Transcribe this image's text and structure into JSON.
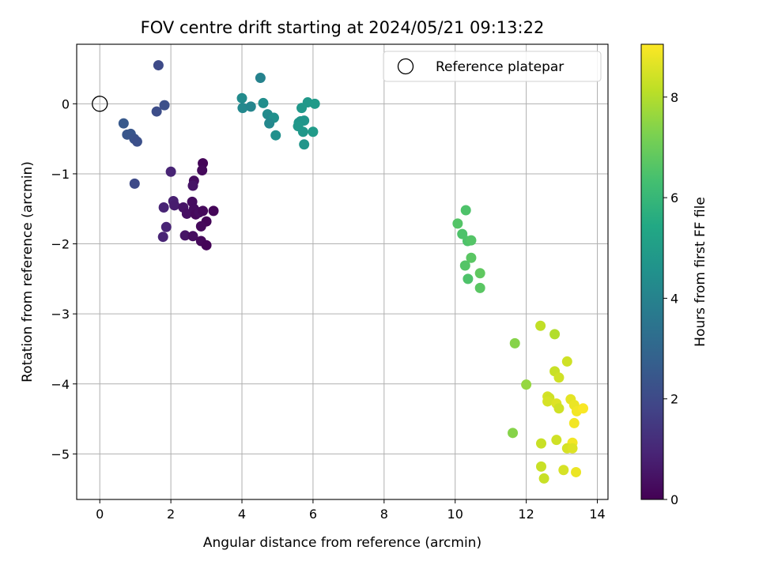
{
  "chart_data": {
    "type": "scatter",
    "title": "FOV centre drift starting at 2024/05/21 09:13:22",
    "xlabel": "Angular distance from reference (arcmin)",
    "ylabel": "Rotation from reference (arcmin)",
    "xlim": [
      -0.65,
      14.3
    ],
    "ylim": [
      -5.65,
      0.85
    ],
    "xticks": [
      0,
      2,
      4,
      6,
      8,
      10,
      12,
      14
    ],
    "yticks": [
      0,
      -1,
      -2,
      -3,
      -4,
      -5
    ],
    "xtick_labels": [
      "0",
      "2",
      "4",
      "6",
      "8",
      "10",
      "12",
      "14"
    ],
    "ytick_labels": [
      "0",
      "−1",
      "−2",
      "−3",
      "−4",
      "−5"
    ],
    "grid": true,
    "legend": {
      "placement": "top-right",
      "entries": [
        {
          "label": "Reference platepar",
          "marker": "open-circle"
        }
      ]
    },
    "reference_point": {
      "x": 0,
      "y": 0
    },
    "colorbar": {
      "label": "Hours from first FF file",
      "colormap": "viridis",
      "range": [
        0,
        9.05
      ],
      "ticks": [
        0,
        2,
        4,
        6,
        8
      ],
      "tick_labels": [
        "0",
        "2",
        "4",
        "6",
        "8"
      ]
    },
    "points": [
      {
        "x": 2.0,
        "y": -0.97,
        "c": 0.9
      },
      {
        "x": 2.9,
        "y": -0.85,
        "c": 0.1
      },
      {
        "x": 2.88,
        "y": -0.95,
        "c": 0.2
      },
      {
        "x": 2.65,
        "y": -1.1,
        "c": 0.3
      },
      {
        "x": 2.62,
        "y": -1.17,
        "c": 0.5
      },
      {
        "x": 2.07,
        "y": -1.39,
        "c": 0.8
      },
      {
        "x": 2.1,
        "y": -1.45,
        "c": 0.7
      },
      {
        "x": 1.8,
        "y": -1.48,
        "c": 0.9
      },
      {
        "x": 2.35,
        "y": -1.48,
        "c": 0.5
      },
      {
        "x": 2.45,
        "y": -1.57,
        "c": 0.4
      },
      {
        "x": 2.6,
        "y": -1.4,
        "c": 0.3
      },
      {
        "x": 2.65,
        "y": -1.5,
        "c": 0.3
      },
      {
        "x": 2.7,
        "y": -1.58,
        "c": 0.2
      },
      {
        "x": 2.8,
        "y": -1.55,
        "c": 0.3
      },
      {
        "x": 2.9,
        "y": -1.53,
        "c": 0.2
      },
      {
        "x": 3.2,
        "y": -1.53,
        "c": 0.1
      },
      {
        "x": 3.0,
        "y": -1.68,
        "c": 0.1
      },
      {
        "x": 2.85,
        "y": -1.75,
        "c": 0.2
      },
      {
        "x": 1.87,
        "y": -1.76,
        "c": 0.9
      },
      {
        "x": 1.78,
        "y": -1.9,
        "c": 0.9
      },
      {
        "x": 2.4,
        "y": -1.88,
        "c": 0.5
      },
      {
        "x": 2.62,
        "y": -1.89,
        "c": 0.3
      },
      {
        "x": 2.85,
        "y": -1.96,
        "c": 0.2
      },
      {
        "x": 3.0,
        "y": -2.02,
        "c": 0.1
      },
      {
        "x": 1.65,
        "y": 0.55,
        "c": 2.0
      },
      {
        "x": 1.82,
        "y": -0.02,
        "c": 2.2
      },
      {
        "x": 1.6,
        "y": -0.11,
        "c": 2.1
      },
      {
        "x": 0.67,
        "y": -0.28,
        "c": 2.5
      },
      {
        "x": 0.77,
        "y": -0.44,
        "c": 2.4
      },
      {
        "x": 0.87,
        "y": -0.43,
        "c": 2.4
      },
      {
        "x": 0.97,
        "y": -0.5,
        "c": 2.3
      },
      {
        "x": 1.05,
        "y": -0.54,
        "c": 2.2
      },
      {
        "x": 0.98,
        "y": -1.14,
        "c": 2.0
      },
      {
        "x": 4.52,
        "y": 0.37,
        "c": 4.0
      },
      {
        "x": 4.0,
        "y": 0.08,
        "c": 4.3
      },
      {
        "x": 4.02,
        "y": -0.06,
        "c": 4.2
      },
      {
        "x": 4.25,
        "y": -0.04,
        "c": 4.1
      },
      {
        "x": 4.6,
        "y": 0.01,
        "c": 4.4
      },
      {
        "x": 4.72,
        "y": -0.15,
        "c": 4.3
      },
      {
        "x": 4.82,
        "y": -0.2,
        "c": 4.2
      },
      {
        "x": 4.9,
        "y": -0.2,
        "c": 4.5
      },
      {
        "x": 4.77,
        "y": -0.28,
        "c": 4.2
      },
      {
        "x": 4.95,
        "y": -0.45,
        "c": 4.5
      },
      {
        "x": 5.68,
        "y": -0.06,
        "c": 4.8
      },
      {
        "x": 5.85,
        "y": 0.02,
        "c": 4.8
      },
      {
        "x": 6.05,
        "y": 0.0,
        "c": 4.9
      },
      {
        "x": 5.6,
        "y": -0.27,
        "c": 4.8
      },
      {
        "x": 5.65,
        "y": -0.25,
        "c": 4.7
      },
      {
        "x": 5.75,
        "y": -0.24,
        "c": 4.7
      },
      {
        "x": 5.58,
        "y": -0.32,
        "c": 4.8
      },
      {
        "x": 5.72,
        "y": -0.4,
        "c": 4.8
      },
      {
        "x": 6.0,
        "y": -0.4,
        "c": 4.9
      },
      {
        "x": 5.75,
        "y": -0.58,
        "c": 4.7
      },
      {
        "x": 10.3,
        "y": -1.52,
        "c": 6.5
      },
      {
        "x": 10.07,
        "y": -1.71,
        "c": 6.6
      },
      {
        "x": 10.2,
        "y": -1.86,
        "c": 6.5
      },
      {
        "x": 10.35,
        "y": -1.96,
        "c": 6.5
      },
      {
        "x": 10.45,
        "y": -1.95,
        "c": 6.6
      },
      {
        "x": 10.45,
        "y": -2.2,
        "c": 6.7
      },
      {
        "x": 10.28,
        "y": -2.31,
        "c": 6.6
      },
      {
        "x": 10.36,
        "y": -2.5,
        "c": 6.5
      },
      {
        "x": 10.7,
        "y": -2.42,
        "c": 6.8
      },
      {
        "x": 10.7,
        "y": -2.63,
        "c": 6.7
      },
      {
        "x": 12.4,
        "y": -3.17,
        "c": 8.2
      },
      {
        "x": 11.68,
        "y": -3.42,
        "c": 7.4
      },
      {
        "x": 12.8,
        "y": -3.29,
        "c": 8.0
      },
      {
        "x": 13.15,
        "y": -3.68,
        "c": 8.4
      },
      {
        "x": 12.8,
        "y": -3.82,
        "c": 8.3
      },
      {
        "x": 12.92,
        "y": -3.91,
        "c": 8.4
      },
      {
        "x": 12.0,
        "y": -4.01,
        "c": 7.6
      },
      {
        "x": 12.6,
        "y": -4.18,
        "c": 8.5
      },
      {
        "x": 12.65,
        "y": -4.2,
        "c": 8.4
      },
      {
        "x": 12.6,
        "y": -4.25,
        "c": 8.5
      },
      {
        "x": 12.85,
        "y": -4.28,
        "c": 8.6
      },
      {
        "x": 12.92,
        "y": -4.35,
        "c": 8.4
      },
      {
        "x": 13.25,
        "y": -4.22,
        "c": 8.7
      },
      {
        "x": 13.35,
        "y": -4.3,
        "c": 8.8
      },
      {
        "x": 13.42,
        "y": -4.39,
        "c": 8.9
      },
      {
        "x": 13.6,
        "y": -4.35,
        "c": 9.0
      },
      {
        "x": 13.35,
        "y": -4.56,
        "c": 8.9
      },
      {
        "x": 11.62,
        "y": -4.7,
        "c": 7.4
      },
      {
        "x": 12.42,
        "y": -4.85,
        "c": 8.3
      },
      {
        "x": 12.85,
        "y": -4.8,
        "c": 8.4
      },
      {
        "x": 13.3,
        "y": -4.84,
        "c": 8.9
      },
      {
        "x": 13.15,
        "y": -4.92,
        "c": 8.5
      },
      {
        "x": 13.3,
        "y": -4.92,
        "c": 8.6
      },
      {
        "x": 12.42,
        "y": -5.18,
        "c": 8.3
      },
      {
        "x": 13.05,
        "y": -5.23,
        "c": 8.5
      },
      {
        "x": 13.4,
        "y": -5.26,
        "c": 8.8
      },
      {
        "x": 12.5,
        "y": -5.35,
        "c": 8.3
      }
    ]
  }
}
